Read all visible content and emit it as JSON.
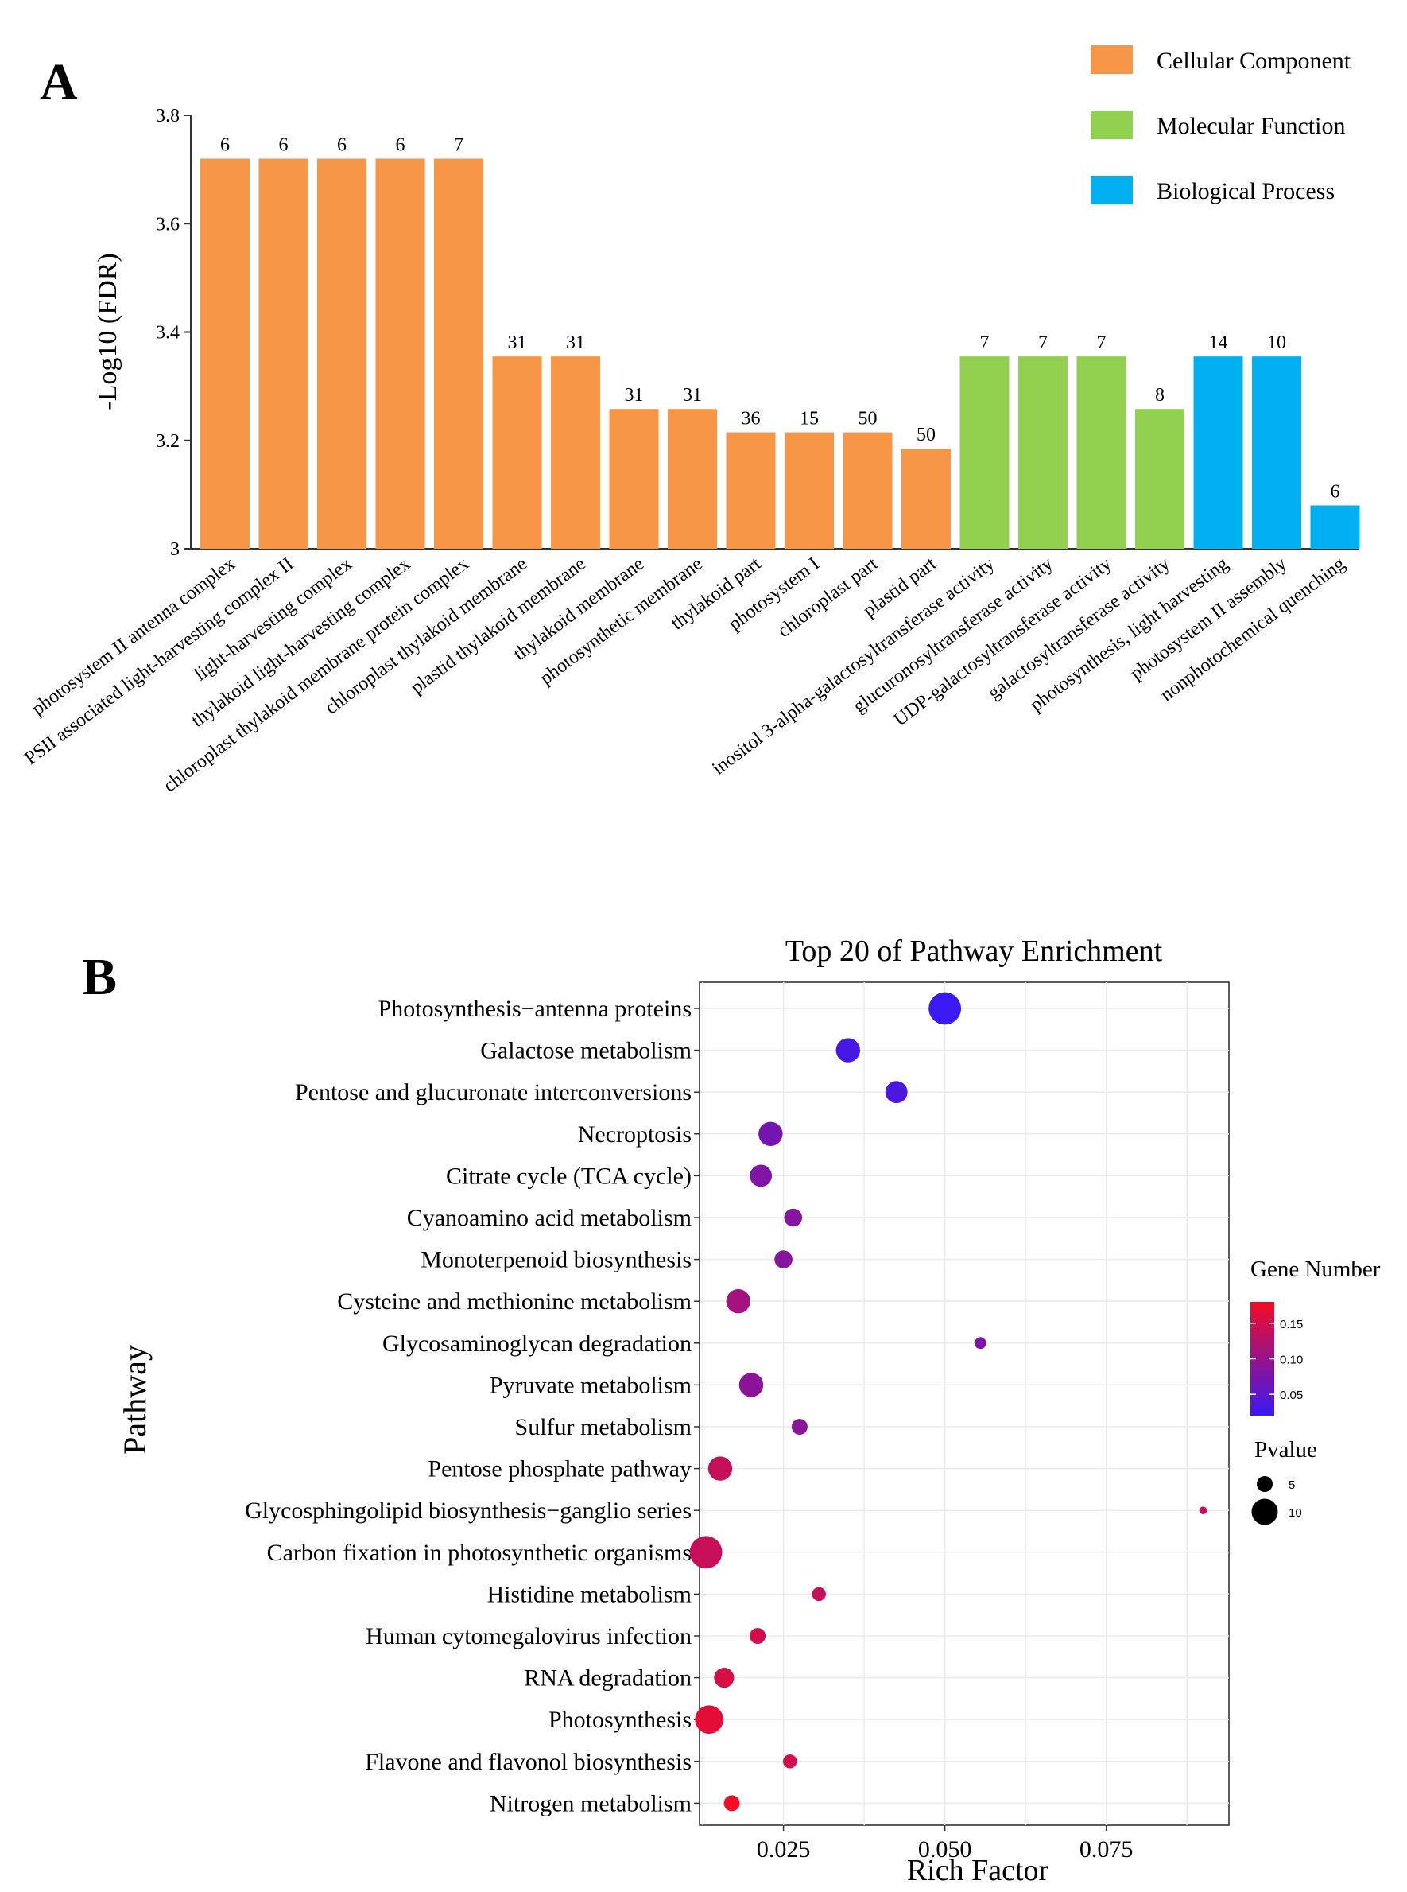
{
  "panels": {
    "a_label": "A",
    "b_label": "B"
  },
  "chart_data": [
    {
      "type": "bar",
      "ylabel": "-Log10 (FDR)",
      "ylim": [
        3,
        3.8
      ],
      "yticks": [
        "3",
        "3.2",
        "3.4",
        "3.6",
        "3.8"
      ],
      "ytick_values": [
        3,
        3.2,
        3.4,
        3.6,
        3.8
      ],
      "categories": [
        "photosystem II antenna complex",
        "PSII associated light-harvesting complex II",
        "light-harvesting complex",
        "thylakoid light-harvesting complex",
        "chloroplast thylakoid membrane protein complex",
        "chloroplast thylakoid membrane",
        "plastid thylakoid membrane",
        "thylakoid membrane",
        "photosynthetic membrane",
        "thylakoid part",
        "photosystem I",
        "chloroplast part",
        "plastid part",
        "inositol 3-alpha-galactosyltransferase activity",
        "glucuronosyltransferase activity",
        "UDP-galactosyltransferase activity",
        "galactosyltransferase activity",
        "photosynthesis, light harvesting",
        "photosystem II assembly",
        "nonphotochemical quenching"
      ],
      "values": [
        3.72,
        3.72,
        3.72,
        3.72,
        3.72,
        3.355,
        3.355,
        3.258,
        3.258,
        3.215,
        3.215,
        3.215,
        3.185,
        3.355,
        3.355,
        3.355,
        3.258,
        3.355,
        3.355,
        3.08
      ],
      "labels": [
        "6",
        "6",
        "6",
        "6",
        "7",
        "31",
        "31",
        "31",
        "31",
        "36",
        "15",
        "50",
        "50",
        "7",
        "7",
        "7",
        "8",
        "14",
        "10",
        "6"
      ],
      "groups": [
        "cc",
        "cc",
        "cc",
        "cc",
        "cc",
        "cc",
        "cc",
        "cc",
        "cc",
        "cc",
        "cc",
        "cc",
        "cc",
        "mf",
        "mf",
        "mf",
        "mf",
        "bp",
        "bp",
        "bp"
      ],
      "legend": [
        {
          "key": "cc",
          "label": "Cellular Component",
          "color": "#F79646"
        },
        {
          "key": "mf",
          "label": "Molecular Function",
          "color": "#92D050"
        },
        {
          "key": "bp",
          "label": "Biological Process",
          "color": "#00B0F0"
        }
      ]
    },
    {
      "type": "scatter",
      "title": "Top 20 of Pathway Enrichment",
      "xlabel": "Rich Factor",
      "ylabel": "Pathway",
      "xlim": [
        0.012,
        0.094
      ],
      "xticks": [
        "0.025",
        "0.050",
        "0.075"
      ],
      "xtick_values": [
        0.025,
        0.05,
        0.075
      ],
      "pathways": [
        "Photosynthesis−antenna proteins",
        "Galactose metabolism",
        "Pentose and glucuronate interconversions",
        "Necroptosis",
        "Citrate cycle (TCA cycle)",
        "Cyanoamino acid metabolism",
        "Monoterpenoid biosynthesis",
        "Cysteine and methionine metabolism",
        "Glycosaminoglycan degradation",
        "Pyruvate metabolism",
        "Sulfur metabolism",
        "Pentose phosphate pathway",
        "Glycosphingolipid biosynthesis−ganglio series",
        "Carbon fixation in photosynthetic organisms",
        "Histidine metabolism",
        "Human cytomegalovirus infection",
        "RNA degradation",
        "Photosynthesis",
        "Flavone and flavonol biosynthesis",
        "Nitrogen metabolism"
      ],
      "rich_factor": [
        0.05,
        0.035,
        0.0425,
        0.023,
        0.0215,
        0.0265,
        0.025,
        0.018,
        0.0555,
        0.02,
        0.0275,
        0.0152,
        0.09,
        0.013,
        0.0305,
        0.021,
        0.0158,
        0.0135,
        0.026,
        0.017
      ],
      "gene_number": [
        0.02,
        0.03,
        0.035,
        0.07,
        0.08,
        0.085,
        0.085,
        0.11,
        0.08,
        0.09,
        0.09,
        0.14,
        0.14,
        0.14,
        0.14,
        0.15,
        0.155,
        0.165,
        0.15,
        0.18
      ],
      "pvalue": [
        13,
        9,
        8,
        9,
        8,
        6,
        6,
        9,
        3,
        9,
        5,
        9,
        1,
        13,
        4,
        5,
        7,
        11,
        4,
        5
      ],
      "colorbar": {
        "title": "Gene Number",
        "ticks": [
          "0.15",
          "0.10",
          "0.05"
        ],
        "tick_values": [
          0.15,
          0.1,
          0.05
        ],
        "min": 0.02,
        "max": 0.18,
        "low_color": "#3A19F3",
        "high_color": "#F40C24"
      },
      "size_legend": {
        "title": "Pvalue",
        "ticks": [
          "5",
          "10"
        ],
        "tick_values": [
          5,
          10
        ]
      }
    }
  ]
}
